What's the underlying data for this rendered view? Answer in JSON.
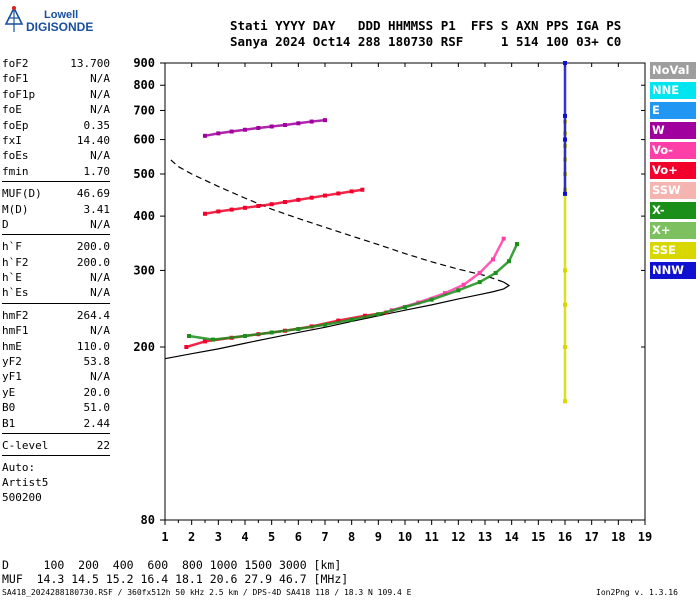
{
  "logo": {
    "line1": "Lowell",
    "line2": "DIGISONDE"
  },
  "header": {
    "line1": "Stati YYYY DAY   DDD HHMMSS P1  FFS S AXN PPS IGA PS",
    "line2": "Sanya 2024 Oct14 288 180730 RSF     1 514 100 03+ C0"
  },
  "params": {
    "group1": [
      {
        "k": "foF2",
        "v": "13.700"
      },
      {
        "k": "foF1",
        "v": "N/A"
      },
      {
        "k": "foF1p",
        "v": "N/A"
      },
      {
        "k": "foE",
        "v": "N/A"
      },
      {
        "k": "foEp",
        "v": "0.35"
      },
      {
        "k": "fxI",
        "v": "14.40"
      },
      {
        "k": "foEs",
        "v": "N/A"
      },
      {
        "k": "fmin",
        "v": "1.70"
      }
    ],
    "group2": [
      {
        "k": "MUF(D)",
        "v": "46.69"
      },
      {
        "k": "M(D)",
        "v": "3.41"
      },
      {
        "k": "D",
        "v": "N/A"
      }
    ],
    "group3": [
      {
        "k": "h`F",
        "v": "200.0"
      },
      {
        "k": "h`F2",
        "v": "200.0"
      },
      {
        "k": "h`E",
        "v": "N/A"
      },
      {
        "k": "h`Es",
        "v": "N/A"
      }
    ],
    "group4": [
      {
        "k": "hmF2",
        "v": "264.4"
      },
      {
        "k": "hmF1",
        "v": "N/A"
      },
      {
        "k": "hmE",
        "v": "110.0"
      },
      {
        "k": "yF2",
        "v": "53.8"
      },
      {
        "k": "yF1",
        "v": "N/A"
      },
      {
        "k": "yE",
        "v": "20.0"
      },
      {
        "k": "B0",
        "v": "51.0"
      },
      {
        "k": "B1",
        "v": "2.44"
      }
    ],
    "group5": [
      {
        "k": "C-level",
        "v": "22"
      }
    ],
    "auto": [
      "Auto:",
      "Artist5",
      "500200"
    ]
  },
  "legend": [
    {
      "label": "NoVal",
      "color": "#9e9e9e"
    },
    {
      "label": "NNE",
      "color": "#00e5f0"
    },
    {
      "label": "E",
      "color": "#2196f3"
    },
    {
      "label": "W",
      "color": "#a0009e"
    },
    {
      "label": "Vo-",
      "color": "#ff3fa8"
    },
    {
      "label": "Vo+",
      "color": "#f0002a"
    },
    {
      "label": "SSW",
      "color": "#f4b4b0"
    },
    {
      "label": "X-",
      "color": "#1a8f1a"
    },
    {
      "label": "X+",
      "color": "#7cc060"
    },
    {
      "label": "SSE",
      "color": "#d8d800"
    },
    {
      "label": "NNW",
      "color": "#1010d0"
    }
  ],
  "bottom": {
    "d_line": "D     100  200  400  600  800 1000 1500 3000 [km]",
    "muf_line": "MUF  14.3 14.5 15.2 16.4 18.1 20.6 27.9 46.7 [MHz]"
  },
  "footer": {
    "left": "SA418_2024288180730.RSF / 360fx512h 50 kHz 2.5 km / DPS-4D SA418 118 / 18.3 N 109.4 E",
    "right": "Ion2Png v. 1.3.16"
  },
  "chart_data": {
    "type": "scatter",
    "title": "",
    "xlabel": "",
    "ylabel": "",
    "xlim": [
      1,
      19
    ],
    "ylim": [
      80,
      900
    ],
    "yscale": "log",
    "xticks": [
      1,
      2,
      3,
      4,
      5,
      6,
      7,
      8,
      9,
      10,
      11,
      12,
      13,
      14,
      15,
      16,
      17,
      18,
      19
    ],
    "yticks": [
      80,
      200,
      300,
      400,
      500,
      600,
      700,
      800,
      900
    ],
    "grid": false,
    "legend_position": "right",
    "series": [
      {
        "name": "Vo+",
        "color": "#f0002a",
        "x": [
          1.8,
          2.5,
          3.5,
          4.5,
          5.5,
          6.5,
          7.5,
          8.5,
          9.3
        ],
        "y": [
          200,
          206,
          210,
          214,
          218,
          223,
          230,
          236,
          240
        ]
      },
      {
        "name": "Vo-",
        "color": "#ff3fa8",
        "x": [
          9.5,
          10.5,
          11.5,
          12.2,
          12.8,
          13.3,
          13.7
        ],
        "y": [
          243,
          253,
          266,
          278,
          296,
          318,
          355
        ]
      },
      {
        "name": "X-",
        "color": "#1a8f1a",
        "x": [
          1.9,
          2.8,
          4,
          5,
          6,
          7,
          8,
          9,
          10,
          11,
          12,
          12.8,
          13.4,
          13.9,
          14.2
        ],
        "y": [
          212,
          208,
          212,
          216,
          220,
          225,
          231,
          238,
          247,
          257,
          270,
          282,
          296,
          315,
          345
        ]
      },
      {
        "name": "W",
        "color": "#a0009e",
        "x": [
          2.5,
          3,
          3.5,
          4,
          4.5,
          5,
          5.5,
          6,
          6.5,
          7
        ],
        "y": [
          612,
          620,
          626,
          632,
          638,
          643,
          648,
          654,
          660,
          665
        ]
      },
      {
        "name": "Vo+",
        "color": "#f0002a",
        "x": [
          2.5,
          3,
          3.5,
          4,
          4.5,
          5,
          5.5,
          6,
          6.5,
          7,
          7.5,
          8,
          8.4
        ],
        "y": [
          405,
          410,
          414,
          418,
          422,
          426,
          431,
          436,
          441,
          446,
          451,
          456,
          460
        ]
      },
      {
        "name": "SSE",
        "color": "#d8d800",
        "x": [
          16,
          16,
          16,
          16,
          16,
          16,
          16,
          16,
          16,
          16
        ],
        "y": [
          660,
          620,
          580,
          540,
          500,
          460,
          300,
          250,
          200,
          150
        ]
      },
      {
        "name": "NNW",
        "color": "#1010d0",
        "x": [
          16,
          16,
          16,
          16
        ],
        "y": [
          900,
          680,
          600,
          450
        ]
      }
    ],
    "profile": {
      "solid_x": [
        1,
        2,
        3,
        4,
        5,
        6,
        7,
        8,
        9,
        10,
        11,
        12,
        12.8,
        13.3,
        13.7,
        13.9,
        13.7
      ],
      "solid_y": [
        188,
        193,
        198,
        204,
        210,
        216,
        222,
        229,
        236,
        243,
        250,
        258,
        264,
        268,
        272,
        277,
        282
      ],
      "dashed_x": [
        13.7,
        13,
        12,
        11,
        10,
        9,
        8,
        7,
        6,
        5,
        4,
        3,
        2,
        1.5,
        1.2
      ],
      "dashed_y": [
        282,
        292,
        302,
        314,
        328,
        344,
        360,
        377,
        395,
        415,
        440,
        468,
        500,
        520,
        540
      ]
    }
  }
}
